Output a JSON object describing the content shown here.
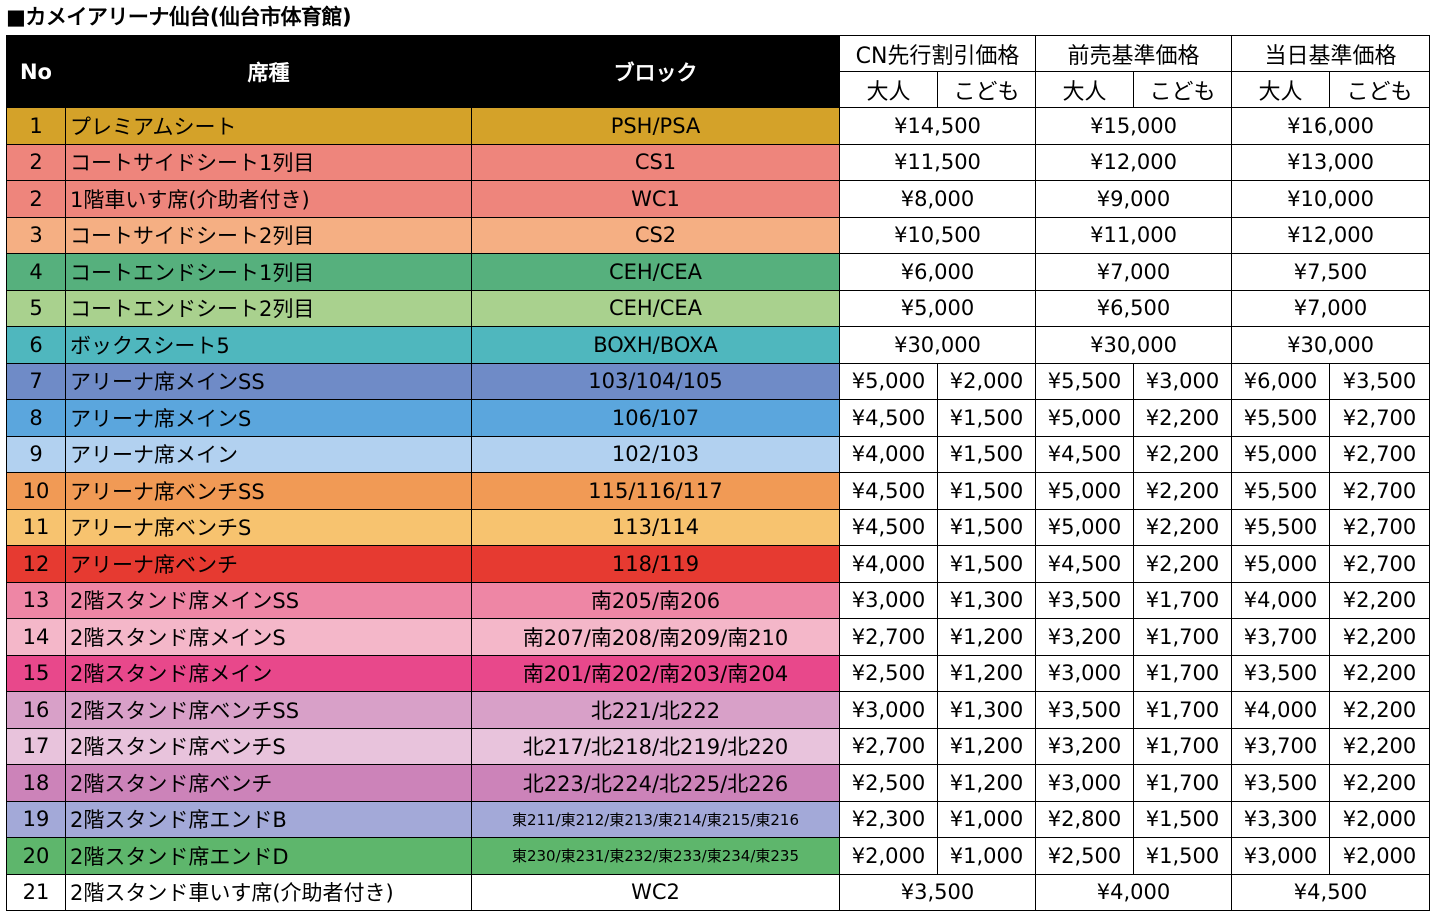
{
  "title": "■カメイアリーナ仙台(仙台市体育館)",
  "headers": {
    "no": "No",
    "seat": "席種",
    "block": "ブロック",
    "groups": [
      "CN先行割引価格",
      "前売基準価格",
      "当日基準価格"
    ],
    "adult": "大人",
    "child": "こども"
  },
  "rows": [
    {
      "no": "1",
      "name": "プレミアムシート",
      "block": "PSH/PSA",
      "color": "#D4A229",
      "merged": true,
      "prices": [
        "¥14,500",
        "¥15,000",
        "¥16,000"
      ]
    },
    {
      "no": "2",
      "name": "コートサイドシート1列目",
      "block": "CS1",
      "color": "#EE857C",
      "merged": true,
      "prices": [
        "¥11,500",
        "¥12,000",
        "¥13,000"
      ]
    },
    {
      "no": "2",
      "name": "1階車いす席(介助者付き)",
      "block": "WC1",
      "color": "#EE857C",
      "merged": true,
      "prices": [
        "¥8,000",
        "¥9,000",
        "¥10,000"
      ]
    },
    {
      "no": "3",
      "name": "コートサイドシート2列目",
      "block": "CS2",
      "color": "#F5AF83",
      "merged": true,
      "prices": [
        "¥10,500",
        "¥11,000",
        "¥12,000"
      ]
    },
    {
      "no": "4",
      "name": "コートエンドシート1列目",
      "block": "CEH/CEA",
      "color": "#56B07D",
      "merged": true,
      "prices": [
        "¥6,000",
        "¥7,000",
        "¥7,500"
      ]
    },
    {
      "no": "5",
      "name": "コートエンドシート2列目",
      "block": "CEH/CEA",
      "color": "#A9D18E",
      "merged": true,
      "prices": [
        "¥5,000",
        "¥6,500",
        "¥7,000"
      ]
    },
    {
      "no": "6",
      "name": "ボックスシート5",
      "block": "BOXH/BOXA",
      "color": "#4FB7BE",
      "merged": true,
      "prices": [
        "¥30,000",
        "¥30,000",
        "¥30,000"
      ]
    },
    {
      "no": "7",
      "name": "アリーナ席メインSS",
      "block": "103/104/105",
      "color": "#6F8BC7",
      "merged": false,
      "prices": [
        "¥5,000",
        "¥2,000",
        "¥5,500",
        "¥3,000",
        "¥6,000",
        "¥3,500"
      ]
    },
    {
      "no": "8",
      "name": "アリーナ席メインS",
      "block": "106/107",
      "color": "#5BA6DD",
      "merged": false,
      "prices": [
        "¥4,500",
        "¥1,500",
        "¥5,000",
        "¥2,200",
        "¥5,500",
        "¥2,700"
      ]
    },
    {
      "no": "9",
      "name": "アリーナ席メイン",
      "block": "102/103",
      "color": "#B2D1F0",
      "merged": false,
      "prices": [
        "¥4,000",
        "¥1,500",
        "¥4,500",
        "¥2,200",
        "¥5,000",
        "¥2,700"
      ]
    },
    {
      "no": "10",
      "name": "アリーナ席ベンチSS",
      "block": "115/116/117",
      "color": "#F19A55",
      "merged": false,
      "prices": [
        "¥4,500",
        "¥1,500",
        "¥5,000",
        "¥2,200",
        "¥5,500",
        "¥2,700"
      ]
    },
    {
      "no": "11",
      "name": "アリーナ席ベンチS",
      "block": "113/114",
      "color": "#F7C36F",
      "merged": false,
      "prices": [
        "¥4,500",
        "¥1,500",
        "¥5,000",
        "¥2,200",
        "¥5,500",
        "¥2,700"
      ]
    },
    {
      "no": "12",
      "name": "アリーナ席ベンチ",
      "block": "118/119",
      "color": "#E63A31",
      "merged": false,
      "prices": [
        "¥4,000",
        "¥1,500",
        "¥4,500",
        "¥2,200",
        "¥5,000",
        "¥2,700"
      ]
    },
    {
      "no": "13",
      "name": "2階スタンド席メインSS",
      "block": "南205/南206",
      "color": "#EE86A5",
      "merged": false,
      "prices": [
        "¥3,000",
        "¥1,300",
        "¥3,500",
        "¥1,700",
        "¥4,000",
        "¥2,200"
      ]
    },
    {
      "no": "14",
      "name": "2階スタンド席メインS",
      "block": "南207/南208/南209/南210",
      "color": "#F4B7C9",
      "merged": false,
      "prices": [
        "¥2,700",
        "¥1,200",
        "¥3,200",
        "¥1,700",
        "¥3,700",
        "¥2,200"
      ]
    },
    {
      "no": "15",
      "name": "2階スタンド席メイン",
      "block": "南201/南202/南203/南204",
      "color": "#E8488B",
      "merged": false,
      "prices": [
        "¥2,500",
        "¥1,200",
        "¥3,000",
        "¥1,700",
        "¥3,500",
        "¥2,200"
      ]
    },
    {
      "no": "16",
      "name": "2階スタンド席ベンチSS",
      "block": "北221/北222",
      "color": "#D8A0C8",
      "merged": false,
      "prices": [
        "¥3,000",
        "¥1,300",
        "¥3,500",
        "¥1,700",
        "¥4,000",
        "¥2,200"
      ]
    },
    {
      "no": "17",
      "name": "2階スタンド席ベンチS",
      "block": "北217/北218/北219/北220",
      "color": "#E8C3DC",
      "merged": false,
      "prices": [
        "¥2,700",
        "¥1,200",
        "¥3,200",
        "¥1,700",
        "¥3,700",
        "¥2,200"
      ]
    },
    {
      "no": "18",
      "name": "2階スタンド席ベンチ",
      "block": "北223/北224/北225/北226",
      "color": "#CC83B9",
      "merged": false,
      "prices": [
        "¥2,500",
        "¥1,200",
        "¥3,000",
        "¥1,700",
        "¥3,500",
        "¥2,200"
      ]
    },
    {
      "no": "19",
      "name": "2階スタンド席エンドB",
      "block": "東211/東212/東213/東214/東215/東216",
      "color": "#A3A9D8",
      "merged": false,
      "small": true,
      "prices": [
        "¥2,300",
        "¥1,000",
        "¥2,800",
        "¥1,500",
        "¥3,300",
        "¥2,000"
      ]
    },
    {
      "no": "20",
      "name": "2階スタンド席エンドD",
      "block": "東230/東231/東232/東233/東234/東235",
      "color": "#5EB66C",
      "merged": false,
      "small": true,
      "prices": [
        "¥2,000",
        "¥1,000",
        "¥2,500",
        "¥1,500",
        "¥3,000",
        "¥2,000"
      ]
    },
    {
      "no": "21",
      "name": "2階スタンド車いす席(介助者付き)",
      "block": "WC2",
      "color": "#FFFFFF",
      "merged": true,
      "prices": [
        "¥3,500",
        "¥4,000",
        "¥4,500"
      ]
    }
  ]
}
